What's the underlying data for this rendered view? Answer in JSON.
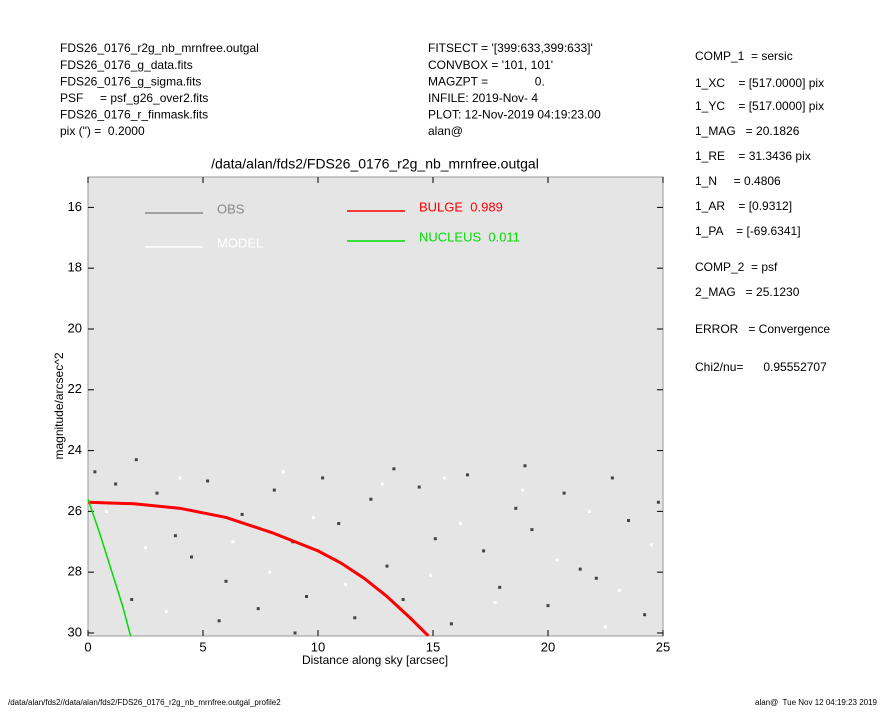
{
  "header": {
    "left": [
      "FDS26_0176_r2g_nb_mrnfree.outgal",
      "FDS26_0176_g_data.fits",
      "FDS26_0176_g_sigma.fits",
      "PSF     = psf_g26_over2.fits",
      "FDS26_0176_r_finmask.fits",
      "pix (\") =  0.2000"
    ],
    "middle": [
      "FITSECT = '[399:633,399:633]'",
      "CONVBOX = '101, 101'",
      "MAGZPT =              0.",
      "INFILE: 2019-Nov- 4",
      "PLOT: 12-Nov-2019 04:19:23.00",
      "alan@"
    ]
  },
  "fit_results": [
    "COMP_1  = sersic",
    "1_XC    = [517.0000] pix",
    "1_YC    = [517.0000] pix",
    "1_MAG   = 20.1826",
    "1_RE    = 31.3436 pix",
    "1_N     = 0.4806",
    "1_AR    = [0.9312]",
    "1_PA    = [-69.6341]",
    "COMP_2  = psf",
    "2_MAG   = 25.1230",
    "ERROR   = Convergence",
    "Chi2/nu=      0.95552707"
  ],
  "footer": {
    "left": "/data/alan/fds2//data/alan/fds2/FDS26_0176_r2g_nb_mrnfree.outgal_profile2",
    "right": "alan@  Tue Nov 12 04:19:23 2019"
  },
  "chart_data": {
    "type": "scatter",
    "title": "/data/alan/fds2/FDS26_0176_r2g_nb_mrnfree.outgal",
    "x_label": "Distance along sky [arcsec]",
    "y_label": "magnitude/arcsec^2",
    "xlim": [
      0,
      25
    ],
    "ylim": [
      30.1,
      15.0
    ],
    "xticks": [
      0,
      5,
      10,
      15,
      20,
      25
    ],
    "yticks": [
      16,
      18,
      20,
      22,
      24,
      26,
      28,
      30
    ],
    "series": [
      {
        "name": "OBS",
        "type": "scatter",
        "color": "#444444",
        "x": [
          0.3,
          1.2,
          2.1,
          3.0,
          3.8,
          4.5,
          5.2,
          6.0,
          6.7,
          7.4,
          8.1,
          8.9,
          9.5,
          10.2,
          10.9,
          11.6,
          12.3,
          13.0,
          13.7,
          14.4,
          15.1,
          15.8,
          16.5,
          17.2,
          17.9,
          18.6,
          19.3,
          20.0,
          20.7,
          21.4,
          22.1,
          22.8,
          23.5,
          24.2,
          24.8,
          1.9,
          5.7,
          13.3,
          19.0,
          9.0
        ],
        "values": [
          24.7,
          25.1,
          24.3,
          25.4,
          26.8,
          27.5,
          25.0,
          28.3,
          26.1,
          29.2,
          25.3,
          27.0,
          28.8,
          24.9,
          26.4,
          29.5,
          25.6,
          27.8,
          28.9,
          25.2,
          26.9,
          29.7,
          24.8,
          27.3,
          28.5,
          25.9,
          26.6,
          29.1,
          25.4,
          27.9,
          28.2,
          24.9,
          26.3,
          29.4,
          25.7,
          28.9,
          29.6,
          24.6,
          24.5,
          30.0
        ]
      },
      {
        "name": "MODEL",
        "type": "scatter",
        "color": "#ffffff",
        "x": [
          0.8,
          2.5,
          4.0,
          6.3,
          7.9,
          9.8,
          11.2,
          12.8,
          14.9,
          16.2,
          17.7,
          18.9,
          20.4,
          21.8,
          23.1,
          24.5,
          3.4,
          8.5,
          15.5,
          22.5
        ],
        "values": [
          26.0,
          27.2,
          24.9,
          27.0,
          28.0,
          26.2,
          28.4,
          25.1,
          28.1,
          26.4,
          29.0,
          25.3,
          27.6,
          26.0,
          28.6,
          27.1,
          29.3,
          24.7,
          24.9,
          29.8
        ]
      },
      {
        "name": "BULGE  0.989",
        "type": "line",
        "color": "#ff0000",
        "x": [
          0,
          2,
          4,
          6,
          8,
          10,
          11,
          12,
          13,
          14,
          14.8
        ],
        "values": [
          25.7,
          25.75,
          25.9,
          26.2,
          26.7,
          27.3,
          27.7,
          28.2,
          28.8,
          29.5,
          30.1
        ]
      },
      {
        "name": "NUCLEUS  0.011",
        "type": "line",
        "color": "#00dd00",
        "x": [
          0,
          0.5,
          1.0,
          1.5,
          1.85
        ],
        "values": [
          25.6,
          26.7,
          27.9,
          29.1,
          30.1
        ]
      }
    ]
  }
}
